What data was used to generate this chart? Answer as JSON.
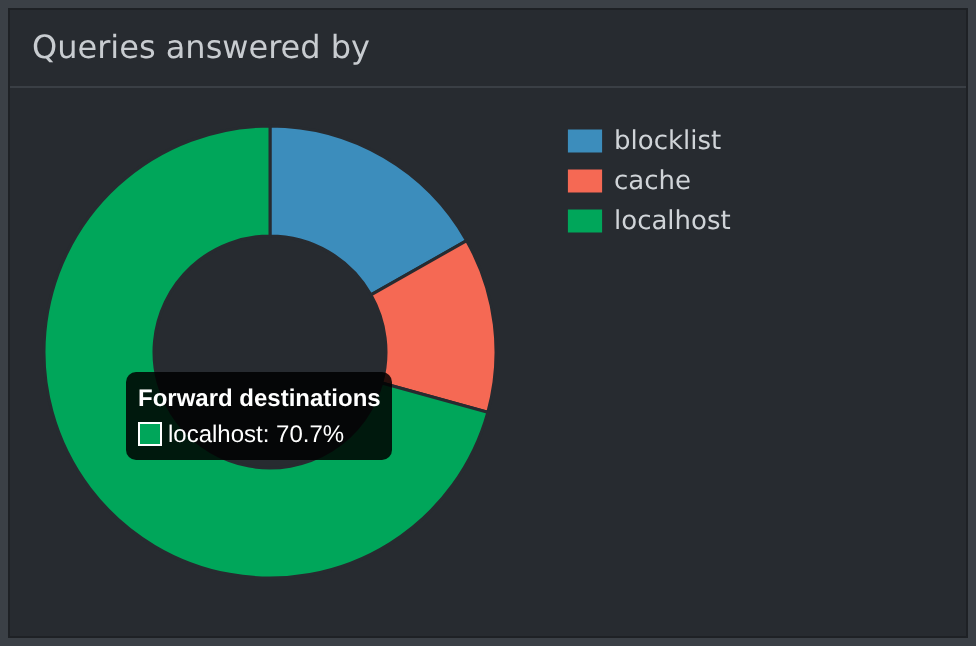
{
  "chart_data": {
    "type": "donut",
    "title": "Queries answered by",
    "categories": [
      "blocklist",
      "cache",
      "localhost"
    ],
    "values": [
      16.8,
      12.5,
      70.7
    ],
    "colors": [
      "#3c8dbc",
      "#f56954",
      "#00a65a"
    ],
    "legend": "right",
    "annotations": [
      "Forward destinations",
      "localhost: 70.7%"
    ]
  }
}
